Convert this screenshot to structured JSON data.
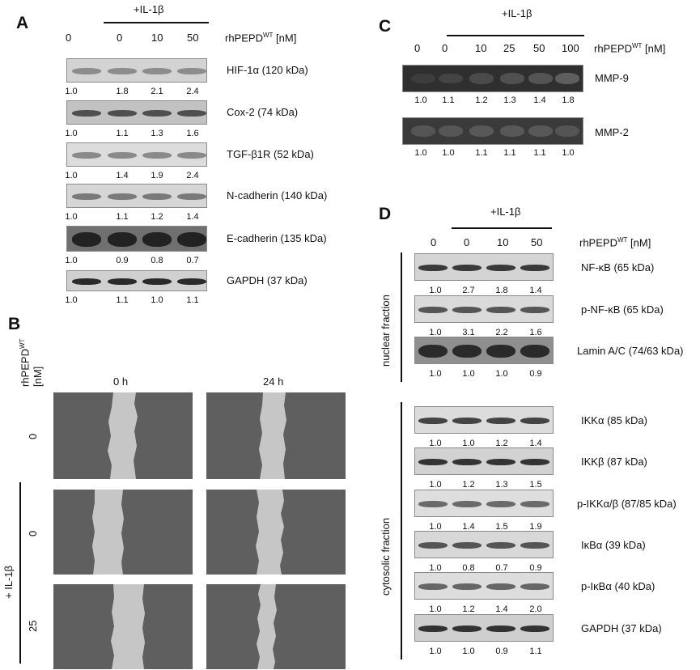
{
  "panel_a": {
    "letter": "A",
    "treatment": "+IL-1β",
    "dose_label": "rhPEPD",
    "dose_sup": "WT",
    "dose_unit": " [nM]",
    "doses": [
      "0",
      "0",
      "10",
      "50"
    ],
    "rows": [
      {
        "label": "HIF-1α (120 kDa)",
        "values": [
          "1.0",
          "1.8",
          "2.1",
          "2.4"
        ],
        "bg": "#d3d3d3",
        "band": "#8c8c8c"
      },
      {
        "label": "Cox-2 (74 kDa)",
        "values": [
          "1.0",
          "1.1",
          "1.3",
          "1.6"
        ],
        "bg": "#c2c2c2",
        "band": "#4f4f4f"
      },
      {
        "label": "TGF-β1R (52 kDa)",
        "values": [
          "1.0",
          "1.4",
          "1.9",
          "2.4"
        ],
        "bg": "#dcdcdc",
        "band": "#8a8a8a"
      },
      {
        "label": "N-cadherin (140 kDa)",
        "values": [
          "1.0",
          "1.1",
          "1.2",
          "1.4"
        ],
        "bg": "#d6d6d6",
        "band": "#7a7a7a"
      },
      {
        "label": "E-cadherin (135 kDa)",
        "values": [
          "1.0",
          "0.9",
          "0.8",
          "0.7"
        ],
        "bg": "#707070",
        "band": "#222222"
      },
      {
        "label": "GAPDH (37 kDa)",
        "values": [
          "1.0",
          "1.1",
          "1.0",
          "1.1"
        ],
        "bg": "#d0d0d0",
        "band": "#2a2a2a"
      }
    ]
  },
  "panel_b": {
    "letter": "B",
    "dose_label": "rhPEPD",
    "dose_sup": "WT",
    "dose_unit": "[nM]",
    "time_labels": [
      "0 h",
      "24 h"
    ],
    "treatment": "+ IL-1β",
    "row_doses": [
      "0",
      "0",
      "25"
    ]
  },
  "panel_c": {
    "letter": "C",
    "treatment": "+IL-1β",
    "dose_label": "rhPEPD",
    "dose_sup": "WT",
    "dose_unit": " [nM]",
    "doses": [
      "0",
      "0",
      "10",
      "25",
      "50",
      "100"
    ],
    "rows": [
      {
        "label": "MMP-9",
        "values": [
          "1.0",
          "1.1",
          "1.2",
          "1.3",
          "1.4",
          "1.8"
        ]
      },
      {
        "label": "MMP-2",
        "values": [
          "1.0",
          "1.0",
          "1.1",
          "1.1",
          "1.1",
          "1.0"
        ]
      }
    ]
  },
  "panel_d": {
    "letter": "D",
    "treatment": "+IL-1β",
    "dose_label": "rhPEPD",
    "dose_sup": "WT",
    "dose_unit": " [nM]",
    "doses": [
      "0",
      "0",
      "10",
      "50"
    ],
    "nuclear_label": "nuclear fraction",
    "cytosolic_label": "cytosolic fraction",
    "nuclear_rows": [
      {
        "label": "NF-κB (65 kDa)",
        "values": [
          "1.0",
          "2.7",
          "1.8",
          "1.4"
        ],
        "bg": "#d4d4d4",
        "band": "#3a3a3a"
      },
      {
        "label": "p-NF-κB (65 kDa)",
        "values": [
          "1.0",
          "3.1",
          "2.2",
          "1.6"
        ],
        "bg": "#dadada",
        "band": "#555555"
      },
      {
        "label": "Lamin A/C (74/63 kDa)",
        "values": [
          "1.0",
          "1.0",
          "1.0",
          "0.9"
        ],
        "bg": "#8f8f8f",
        "band": "#2a2a2a"
      }
    ],
    "cytosolic_rows": [
      {
        "label": "IKKα (85 kDa)",
        "values": [
          "1.0",
          "1.0",
          "1.2",
          "1.4"
        ],
        "bg": "#dcdcdc",
        "band": "#444444"
      },
      {
        "label": "IKKβ (87 kDa)",
        "values": [
          "1.0",
          "1.2",
          "1.3",
          "1.5"
        ],
        "bg": "#d2d2d2",
        "band": "#333333"
      },
      {
        "label": "p-IKKα/β (87/85 kDa)",
        "values": [
          "1.0",
          "1.4",
          "1.5",
          "1.9"
        ],
        "bg": "#dedede",
        "band": "#6a6a6a"
      },
      {
        "label": "IκBα (39 kDa)",
        "values": [
          "1.0",
          "0.8",
          "0.7",
          "0.9"
        ],
        "bg": "#d8d8d8",
        "band": "#555555"
      },
      {
        "label": "p-IκBα (40 kDa)",
        "values": [
          "1.0",
          "1.2",
          "1.4",
          "2.0"
        ],
        "bg": "#dddddd",
        "band": "#666666"
      },
      {
        "label": "GAPDH (37 kDa)",
        "values": [
          "1.0",
          "1.0",
          "0.9",
          "1.1"
        ],
        "bg": "#cfcfcf",
        "band": "#333333"
      }
    ]
  }
}
